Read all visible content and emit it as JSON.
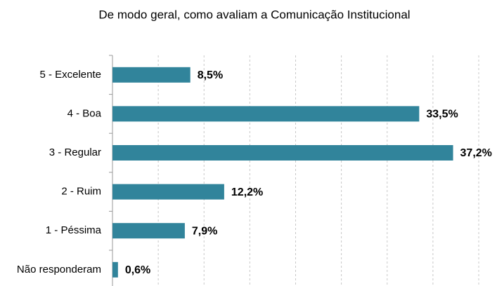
{
  "chart_data": {
    "type": "barh",
    "title": "De modo geral, como avaliam a Comunicação Institucional",
    "categories": [
      "5 - Excelente",
      "4 - Boa",
      "3 - Regular",
      "2 - Ruim",
      "1 - Péssima",
      "Não responderam"
    ],
    "values": [
      8.5,
      33.5,
      37.2,
      12.2,
      7.9,
      0.6
    ],
    "value_labels": [
      "8,5%",
      "33,5%",
      "37,2%",
      "12,2%",
      "7,9%",
      "0,6%"
    ],
    "color": "#31849b",
    "xlim": [
      0,
      40
    ],
    "xticks": [
      0,
      5,
      10,
      15,
      20,
      25,
      30,
      35,
      40
    ],
    "grid": true
  }
}
